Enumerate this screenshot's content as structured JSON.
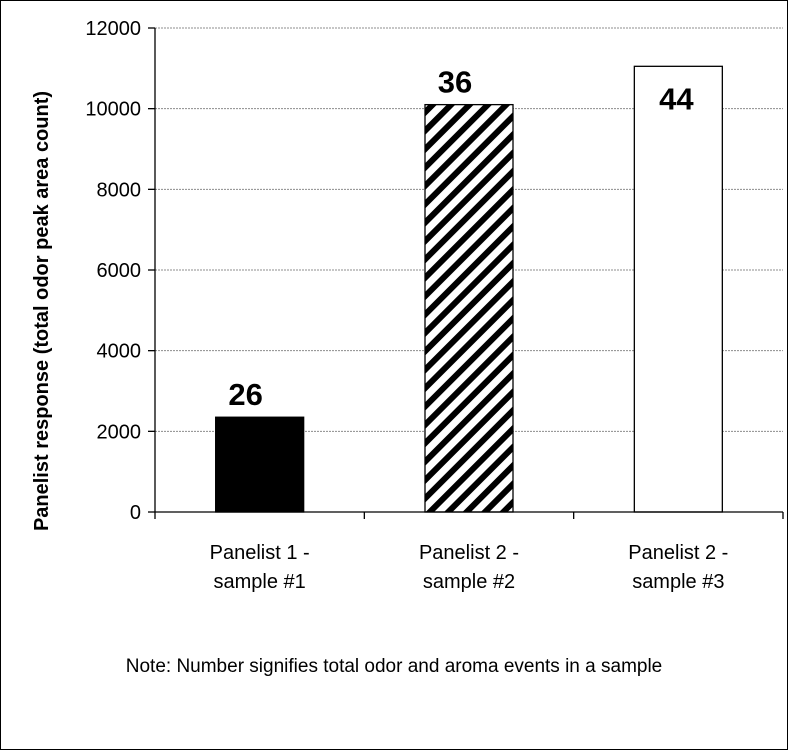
{
  "chart_data": {
    "type": "bar",
    "categories": [
      [
        "Panelist 1 -",
        "sample #1"
      ],
      [
        "Panelist 2 -",
        "sample #2"
      ],
      [
        "Panelist 2 -",
        "sample #3"
      ]
    ],
    "values": [
      2350,
      10100,
      11050
    ],
    "data_labels": [
      "26",
      "36",
      "44"
    ],
    "bar_fills": [
      "solid-black",
      "diagonal-hatch",
      "white"
    ],
    "title": "",
    "xlabel": "",
    "ylabel": "Panelist response (total odor peak area count)",
    "ylim": [
      0,
      12000
    ],
    "yticks": [
      0,
      2000,
      4000,
      6000,
      8000,
      10000,
      12000
    ],
    "grid": true,
    "legend": "none"
  },
  "note": "Note:  Number signifies total odor and aroma events in a sample"
}
